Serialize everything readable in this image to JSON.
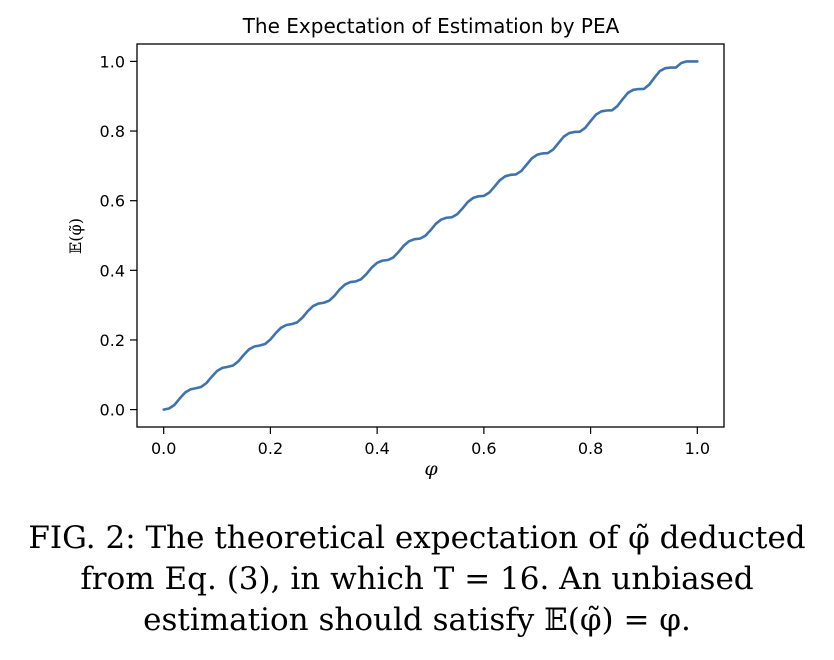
{
  "chart_data": {
    "type": "line",
    "title": "The Expectation of Estimation by PEA",
    "xlabel": "φ",
    "ylabel": "𝔼(φ̃)",
    "xlim": [
      -0.05,
      1.05
    ],
    "ylim": [
      -0.05,
      1.05
    ],
    "xticks": [
      0.0,
      0.2,
      0.4,
      0.6,
      0.8,
      1.0
    ],
    "xtick_labels": [
      "0.0",
      "0.2",
      "0.4",
      "0.6",
      "0.8",
      "1.0"
    ],
    "yticks": [
      0.0,
      0.2,
      0.4,
      0.6,
      0.8,
      1.0
    ],
    "ytick_labels": [
      "0.0",
      "0.2",
      "0.4",
      "0.6",
      "0.8",
      "1.0"
    ],
    "grid": false,
    "line_color": "#3f73ad",
    "series": [
      {
        "x": [
          0.0,
          0.01,
          0.02,
          0.03,
          0.04,
          0.05,
          0.06,
          0.07,
          0.08,
          0.09,
          0.1,
          0.11,
          0.12,
          0.13,
          0.14,
          0.15,
          0.16,
          0.17,
          0.18,
          0.19,
          0.2,
          0.21,
          0.22,
          0.23,
          0.24,
          0.25,
          0.26,
          0.27,
          0.28,
          0.29,
          0.3,
          0.31,
          0.32,
          0.33,
          0.34,
          0.35,
          0.36,
          0.37,
          0.38,
          0.39,
          0.4,
          0.41,
          0.42,
          0.43,
          0.44,
          0.45,
          0.46,
          0.47,
          0.48,
          0.49,
          0.5,
          0.51,
          0.52,
          0.53,
          0.54,
          0.55,
          0.56,
          0.57,
          0.58,
          0.59,
          0.6,
          0.61,
          0.62,
          0.63,
          0.64,
          0.65,
          0.66,
          0.67,
          0.68,
          0.69,
          0.7,
          0.71,
          0.72,
          0.73,
          0.74,
          0.75,
          0.76,
          0.77,
          0.78,
          0.79,
          0.8,
          0.81,
          0.82,
          0.83,
          0.84,
          0.85,
          0.86,
          0.87,
          0.88,
          0.89,
          0.9,
          0.91,
          0.92,
          0.93,
          0.94,
          0.95,
          0.96,
          0.97,
          0.98,
          0.99,
          1.0
        ],
        "y": [
          0.0,
          0.0032,
          0.0132,
          0.0317,
          0.0487,
          0.0581,
          0.0613,
          0.065,
          0.076,
          0.0944,
          0.1109,
          0.1197,
          0.1226,
          0.1267,
          0.1387,
          0.1572,
          0.1731,
          0.1813,
          0.184,
          0.1885,
          0.2014,
          0.2199,
          0.2352,
          0.2429,
          0.2454,
          0.2504,
          0.2641,
          0.2826,
          0.2973,
          0.3046,
          0.3068,
          0.3125,
          0.3269,
          0.3454,
          0.3594,
          0.3662,
          0.3682,
          0.3746,
          0.3896,
          0.4081,
          0.4216,
          0.4278,
          0.4296,
          0.4367,
          0.4523,
          0.4709,
          0.4837,
          0.4894,
          0.491,
          0.4988,
          0.515,
          0.5336,
          0.5458,
          0.551,
          0.5524,
          0.5609,
          0.5778,
          0.5963,
          0.6079,
          0.6126,
          0.6138,
          0.623,
          0.6405,
          0.659,
          0.67,
          0.6742,
          0.6753,
          0.6851,
          0.7032,
          0.7217,
          0.7321,
          0.7358,
          0.7367,
          0.7472,
          0.7659,
          0.7844,
          0.7942,
          0.7974,
          0.7981,
          0.8093,
          0.8286,
          0.8471,
          0.8563,
          0.859,
          0.8595,
          0.8714,
          0.8913,
          0.9098,
          0.9184,
          0.9207,
          0.921,
          0.9335,
          0.954,
          0.9725,
          0.9805,
          0.9823,
          0.9824,
          0.9956,
          1.0,
          1.0,
          1.0
        ]
      }
    ]
  },
  "caption": {
    "line1": "FIG. 2: The theoretical expectation of φ̃ deducted",
    "line2": "from Eq. (3), in which T = 16. An unbiased",
    "line3": "estimation should satisfy 𝔼(φ̃) = φ."
  }
}
